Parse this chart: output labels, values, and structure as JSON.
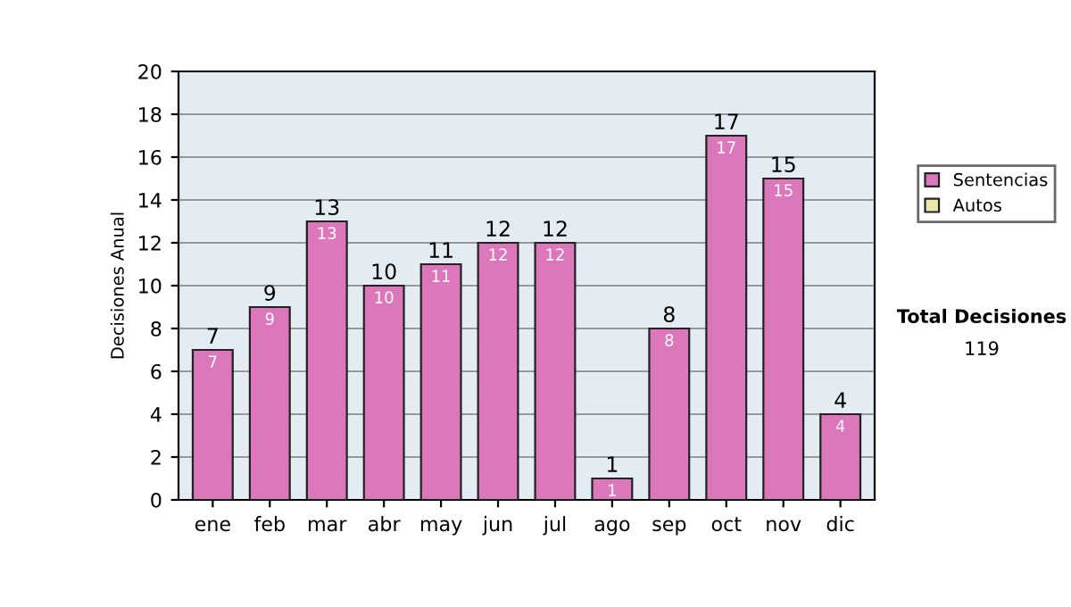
{
  "chart_data": {
    "type": "bar",
    "ylabel": "Decisiones Anual",
    "categories": [
      "ene",
      "feb",
      "mar",
      "abr",
      "may",
      "jun",
      "jul",
      "ago",
      "sep",
      "oct",
      "nov",
      "dic"
    ],
    "stacked": true,
    "series": [
      {
        "name": "Sentencias",
        "color": "#dd77bb",
        "values": [
          7,
          9,
          13,
          10,
          11,
          12,
          12,
          1,
          8,
          17,
          15,
          4
        ],
        "value_labels": [
          "7",
          "9",
          "13",
          "10",
          "11",
          "12",
          "12",
          "1",
          "8",
          "17",
          "15",
          "4"
        ]
      },
      {
        "name": "Autos",
        "color": "#e8e8a8",
        "values": [
          0,
          0,
          0,
          0,
          0,
          0,
          0,
          0,
          0,
          0,
          0,
          0
        ]
      }
    ],
    "totals": [
      "7",
      "9",
      "13",
      "10",
      "11",
      "12",
      "12",
      "1",
      "8",
      "17",
      "15",
      "4"
    ],
    "ylim": [
      0,
      20
    ],
    "yticks": [
      0,
      2,
      4,
      6,
      8,
      10,
      12,
      14,
      16,
      18,
      20
    ],
    "grid": "y",
    "legend": "right",
    "annotations": [
      "Total Decisiones",
      "119"
    ]
  }
}
